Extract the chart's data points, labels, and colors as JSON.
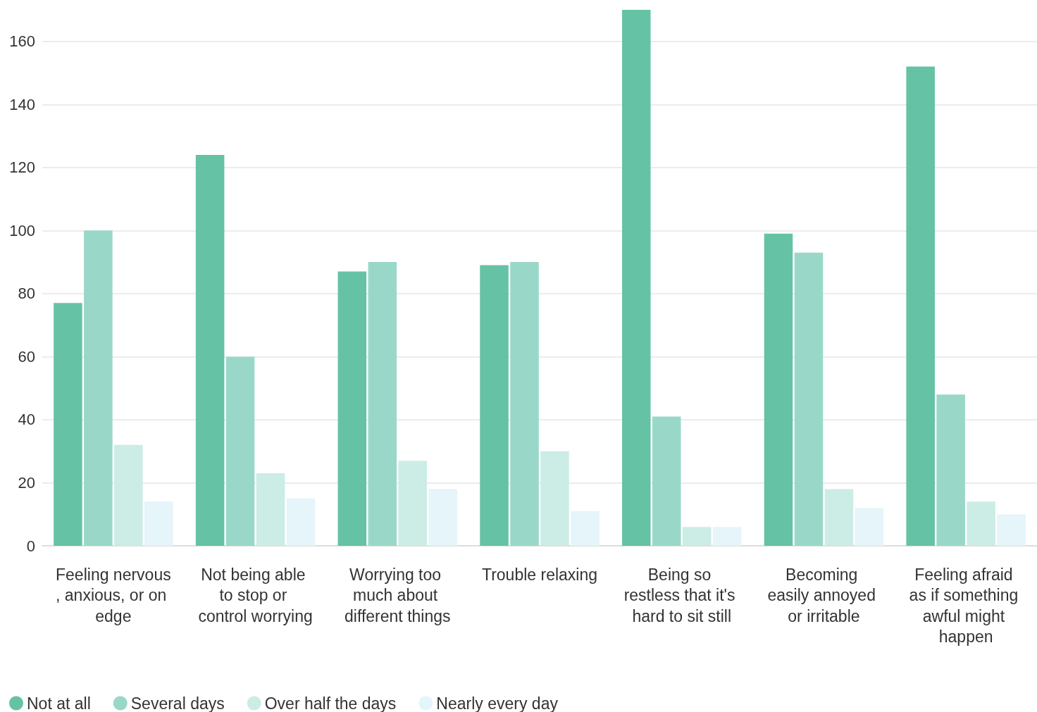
{
  "chart_data": {
    "type": "bar",
    "categories": [
      "Feeling nervous, anxious, or on edge",
      "Not being able to stop or control worrying",
      "Worrying too much about different things",
      "Trouble relaxing",
      "Being so restless that it's hard to sit still",
      "Becoming easily annoyed or irritable",
      "Feeling afraid as if something awful might happen"
    ],
    "series": [
      {
        "name": "Not at all",
        "color": "#66c2a5",
        "values": [
          77,
          124,
          87,
          89,
          170,
          99,
          152
        ]
      },
      {
        "name": "Several days",
        "color": "#99d8c9",
        "values": [
          100,
          60,
          90,
          90,
          41,
          93,
          48
        ]
      },
      {
        "name": "Over half the days",
        "color": "#ccece6",
        "values": [
          32,
          23,
          27,
          30,
          6,
          18,
          14
        ]
      },
      {
        "name": "Nearly every day",
        "color": "#e5f5f9",
        "values": [
          14,
          15,
          18,
          11,
          6,
          12,
          10
        ]
      }
    ],
    "ylim": [
      0,
      170
    ],
    "yticks": [
      0,
      20,
      40,
      60,
      80,
      100,
      120,
      140,
      160
    ],
    "grid": "y",
    "legend": "bottom left"
  }
}
